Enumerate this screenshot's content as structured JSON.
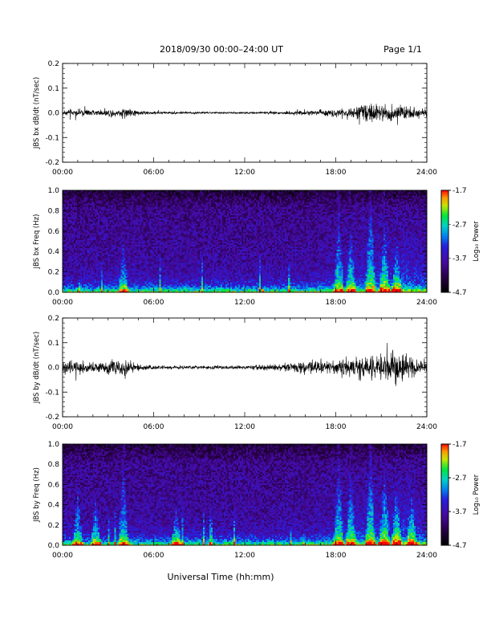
{
  "header": {
    "title": "2018/09/30  00:00–24:00 UT",
    "page": "Page 1/1"
  },
  "footer": {
    "xlabel": "Universal Time (hh:mm)"
  },
  "chart_data": [
    {
      "type": "line",
      "ylabel": "JBS bx dB/dt (nT/sec)",
      "xlim": [
        0,
        24
      ],
      "ylim": [
        -0.2,
        0.2
      ],
      "yticks": [
        "0.2",
        "0.1",
        "0.0",
        "-0.1",
        "-0.2"
      ],
      "xticks": [
        "00:00",
        "06:00",
        "12:00",
        "18:00",
        "24:00"
      ],
      "series": [
        {
          "color": "#000000",
          "x": [
            0,
            1,
            2,
            3,
            4,
            4.5,
            5,
            6,
            8,
            10,
            12,
            14,
            16,
            17,
            18,
            19,
            20,
            21,
            22,
            23,
            24
          ],
          "values": [
            0.015,
            0.015,
            0.015,
            0.018,
            0.025,
            0.02,
            0.012,
            0.008,
            0.006,
            0.005,
            0.005,
            0.008,
            0.012,
            0.015,
            0.02,
            0.03,
            0.05,
            0.045,
            0.05,
            0.03,
            0.02
          ]
        }
      ]
    },
    {
      "type": "heatmap",
      "ylabel": "JBS bx Freq (Hz)",
      "xlim": [
        0,
        24
      ],
      "ylim": [
        0.0,
        1.0
      ],
      "yticks": [
        "1.0",
        "0.8",
        "0.6",
        "0.4",
        "0.2",
        "0.0"
      ],
      "xticks": [
        "00:00",
        "06:00",
        "12:00",
        "18:00",
        "24:00"
      ],
      "colorbar": {
        "label": "Log₁₀ Power",
        "ticks": [
          "-1.7",
          "-2.7",
          "-3.7",
          "-4.7"
        ],
        "range": [
          -4.7,
          -1.7
        ]
      },
      "events": [
        {
          "t": 4.0,
          "fmax": 0.5
        },
        {
          "t": 18.2,
          "fmax": 0.85
        },
        {
          "t": 19.0,
          "fmax": 0.7
        },
        {
          "t": 20.3,
          "fmax": 1.0
        },
        {
          "t": 21.2,
          "fmax": 0.7
        },
        {
          "t": 22.0,
          "fmax": 0.5
        }
      ]
    },
    {
      "type": "line",
      "ylabel": "JBS by dB/dt (nT/sec)",
      "xlim": [
        0,
        24
      ],
      "ylim": [
        -0.2,
        0.2
      ],
      "yticks": [
        "0.2",
        "0.1",
        "0.0",
        "-0.1",
        "-0.2"
      ],
      "xticks": [
        "00:00",
        "06:00",
        "12:00",
        "18:00",
        "24:00"
      ],
      "series": [
        {
          "color": "#000000",
          "x": [
            0,
            1,
            2,
            3,
            4,
            4.5,
            5,
            6,
            8,
            10,
            12,
            14,
            16,
            17,
            18,
            19,
            20,
            21,
            22,
            23,
            24
          ],
          "values": [
            0.03,
            0.03,
            0.025,
            0.035,
            0.045,
            0.03,
            0.015,
            0.01,
            0.008,
            0.008,
            0.01,
            0.015,
            0.03,
            0.035,
            0.04,
            0.045,
            0.055,
            0.06,
            0.075,
            0.05,
            0.035
          ]
        }
      ]
    },
    {
      "type": "heatmap",
      "ylabel": "JBS by Freq (Hz)",
      "xlim": [
        0,
        24
      ],
      "ylim": [
        0.0,
        1.0
      ],
      "yticks": [
        "1.0",
        "0.8",
        "0.6",
        "0.4",
        "0.2",
        "0.0"
      ],
      "xticks": [
        "00:00",
        "06:00",
        "12:00",
        "18:00",
        "24:00"
      ],
      "colorbar": {
        "label": "Log₁₀ Power",
        "ticks": [
          "-1.7",
          "-2.7",
          "-3.7",
          "-4.7"
        ],
        "range": [
          -4.7,
          -1.7
        ]
      },
      "events": [
        {
          "t": 1.0,
          "fmax": 0.6
        },
        {
          "t": 2.2,
          "fmax": 0.5
        },
        {
          "t": 4.0,
          "fmax": 0.9
        },
        {
          "t": 7.5,
          "fmax": 0.4
        },
        {
          "t": 18.2,
          "fmax": 0.9
        },
        {
          "t": 19.0,
          "fmax": 0.8
        },
        {
          "t": 20.3,
          "fmax": 1.0
        },
        {
          "t": 21.2,
          "fmax": 0.8
        },
        {
          "t": 22.0,
          "fmax": 0.6
        },
        {
          "t": 23.0,
          "fmax": 0.5
        }
      ]
    }
  ]
}
